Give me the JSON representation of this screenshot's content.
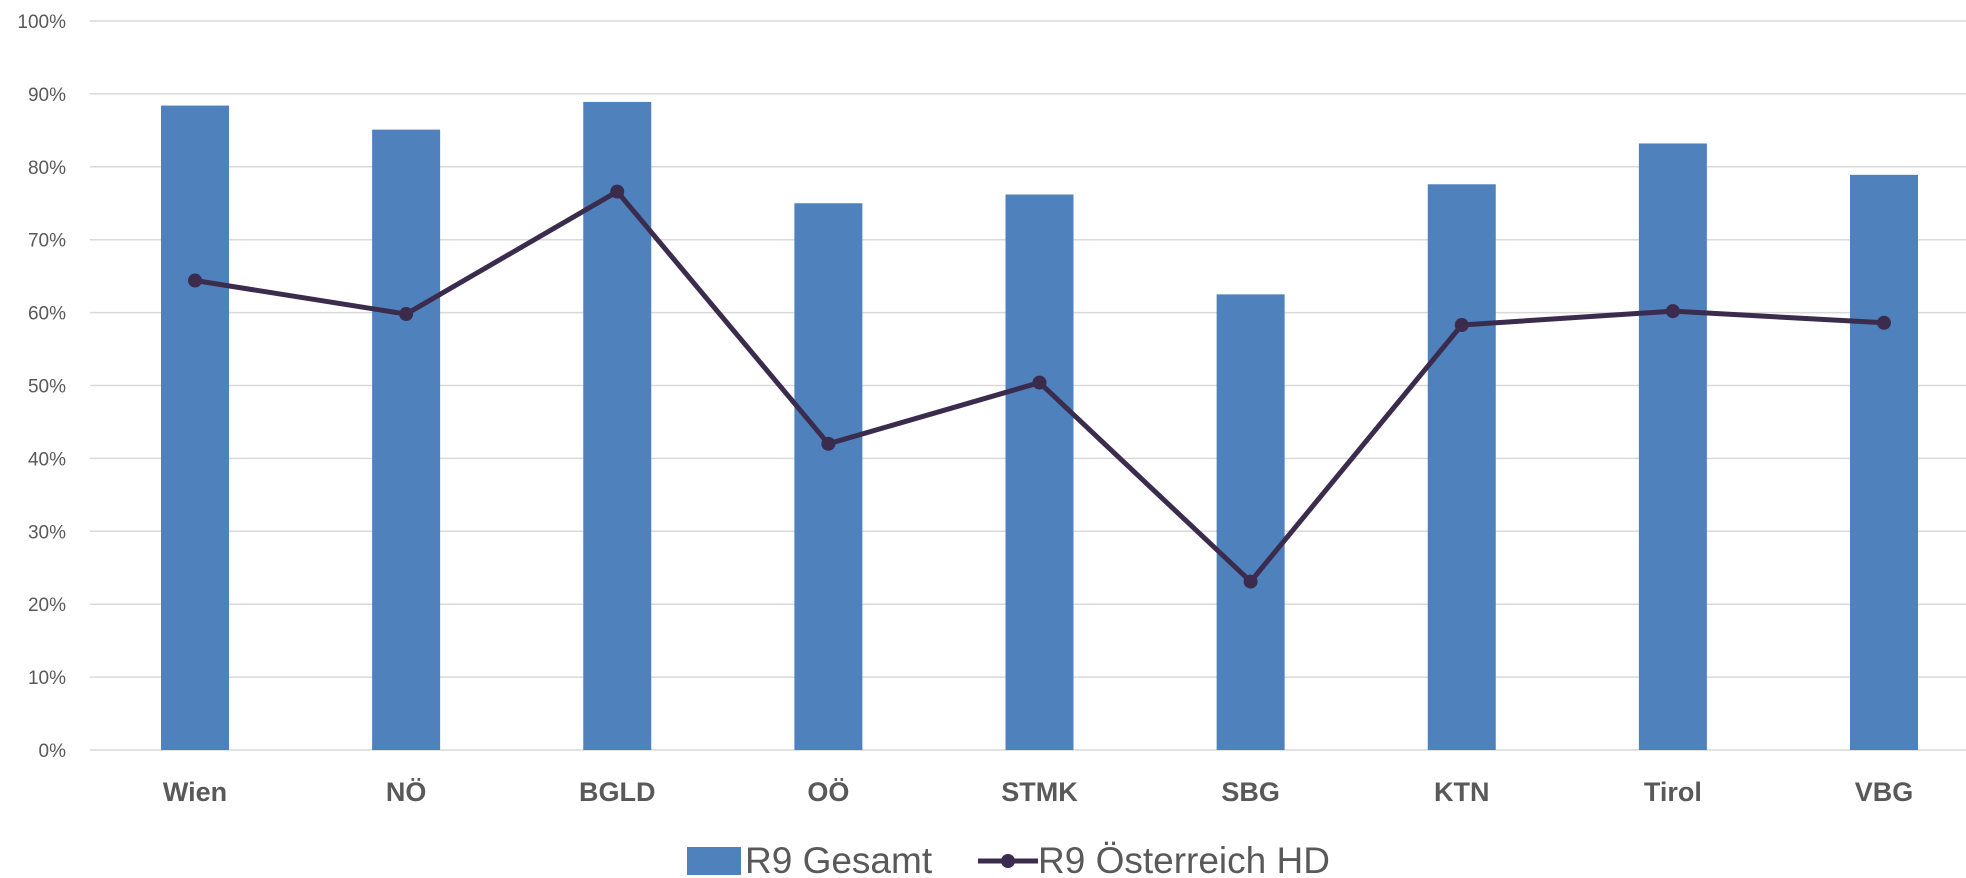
{
  "chart_data": {
    "type": "bar",
    "categories": [
      "Wien",
      "NÖ",
      "BGLD",
      "OÖ",
      "STMK",
      "SBG",
      "KTN",
      "Tirol",
      "VBG"
    ],
    "series": [
      {
        "name": "R9 Gesamt",
        "type": "bar",
        "color": "#4F81BD",
        "values": [
          88.4,
          85.1,
          88.9,
          75.0,
          76.2,
          62.5,
          77.6,
          83.2,
          78.9
        ]
      },
      {
        "name": "R9 Österreich HD",
        "type": "line",
        "color": "#3B2C4E",
        "values": [
          64.4,
          59.8,
          76.6,
          42.0,
          50.4,
          23.1,
          58.3,
          60.2,
          58.6
        ]
      }
    ],
    "y_ticks": [
      "0%",
      "10%",
      "20%",
      "30%",
      "40%",
      "50%",
      "60%",
      "70%",
      "80%",
      "90%",
      "100%"
    ],
    "ylim": [
      0,
      100
    ],
    "grid": true,
    "legend_position": "bottom"
  }
}
